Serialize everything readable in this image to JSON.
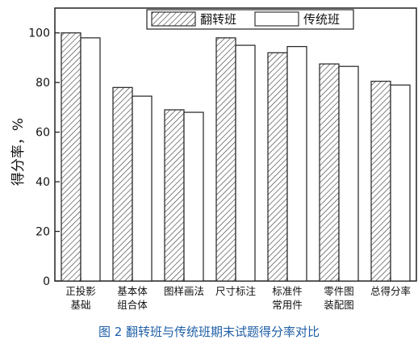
{
  "caption": "图 2 翻转班与传统班期末试题得分率对比",
  "chart_data": {
    "type": "bar",
    "categories": [
      [
        "正投影",
        "基础"
      ],
      [
        "基本体",
        "组合体"
      ],
      [
        "图样画法"
      ],
      [
        "尺寸标注"
      ],
      [
        "标准件",
        "常用件"
      ],
      [
        "零件图",
        "装配图"
      ],
      [
        "总得分率"
      ]
    ],
    "series": [
      {
        "name": "翻转班",
        "values": [
          100,
          78,
          69,
          98,
          92,
          87.5,
          80.5
        ],
        "fill": "hatch"
      },
      {
        "name": "传统班",
        "values": [
          98,
          74.5,
          68,
          95,
          94.5,
          86.5,
          79
        ],
        "fill": "#ffffff"
      }
    ],
    "ylabel": "得分率，%",
    "xlabel": "",
    "ylim": [
      0,
      110
    ],
    "yticks": [
      0,
      20,
      40,
      60,
      80,
      100
    ],
    "legend_position": "top-right",
    "grid": false,
    "bar_stroke": "#222222",
    "caption_color": "#1f5fa6"
  }
}
